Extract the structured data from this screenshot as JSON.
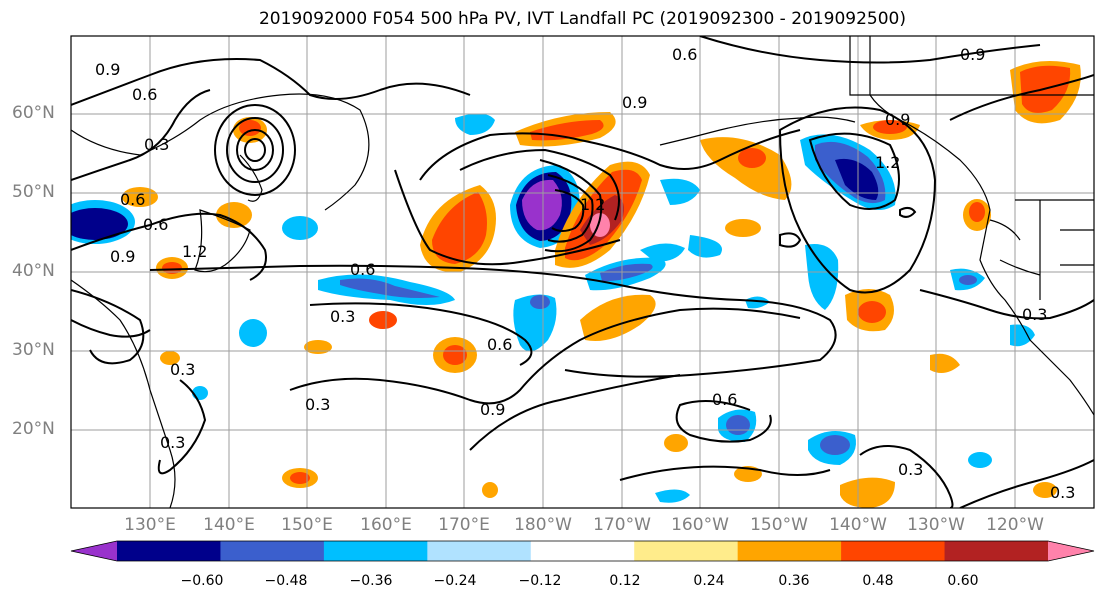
{
  "title": "2019092000 F054 500 hPa PV, IVT Landfall PC (2019092300 - 2019092500)",
  "lat_labels": [
    "60°N",
    "50°N",
    "40°N",
    "30°N",
    "20°N"
  ],
  "lon_labels": [
    "130°E",
    "140°E",
    "150°E",
    "160°E",
    "170°E",
    "180°W",
    "170°W",
    "160°W",
    "150°W",
    "140°W",
    "130°W",
    "120°W"
  ],
  "colorbar": {
    "ticks": [
      "−0.60",
      "−0.48",
      "−0.36",
      "−0.24",
      "−0.12",
      "0.12",
      "0.24",
      "0.36",
      "0.48",
      "0.60"
    ],
    "colors": [
      "#9932cc",
      "#00008b",
      "#3b5fcd",
      "#00bfff",
      "#b0e2ff",
      "#ffffff",
      "#ffec8b",
      "#ffa500",
      "#ff4500",
      "#b22222",
      "#ff82ab"
    ]
  },
  "contour_labels": [
    "0.9",
    "0.6",
    "0.3",
    "0.6",
    "1.2",
    "0.9",
    "0.6",
    "0.3",
    "0.6",
    "0.3",
    "0.3",
    "0.3",
    "0.6",
    "0.9",
    "0.9",
    "0.6",
    "1.2",
    "0.9",
    "1.2",
    "0.9",
    "0.6",
    "0.3",
    "0.3",
    "0.3"
  ]
}
